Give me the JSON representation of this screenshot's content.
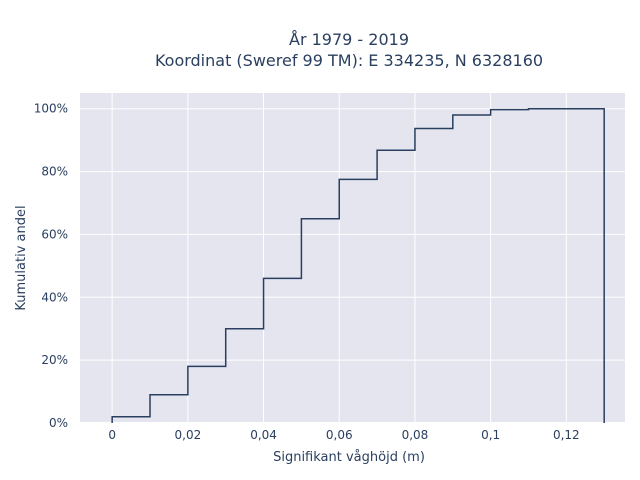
{
  "chart_data": {
    "type": "line",
    "line_shape": "step",
    "title_line1": "År 1979 - 2019",
    "title_line2": "Koordinat (Sweref 99 TM): E 334235, N 6328160",
    "xlabel": "Signifikant våghöjd (m)",
    "ylabel": "Kumulativ andel",
    "xlim": [
      -0.0085,
      0.1355
    ],
    "ylim": [
      0,
      1.05
    ],
    "x_ticks": [
      0,
      0.02,
      0.04,
      0.06,
      0.08,
      0.1,
      0.12
    ],
    "x_tick_labels": [
      "0",
      "0,02",
      "0,04",
      "0,06",
      "0,08",
      "0,1",
      "0,12"
    ],
    "y_ticks": [
      0,
      0.2,
      0.4,
      0.6,
      0.8,
      1.0
    ],
    "y_tick_labels": [
      "0%",
      "20%",
      "40%",
      "60%",
      "80%",
      "100%"
    ],
    "grid": true,
    "background": "#e5e5f0",
    "line_color": "#2a3f5f",
    "series": [
      {
        "x": [
          0,
          0.01,
          0.02,
          0.03,
          0.04,
          0.05,
          0.06,
          0.07,
          0.08,
          0.09,
          0.1,
          0.11,
          0.12,
          0.13
        ],
        "y": [
          0.02,
          0.09,
          0.18,
          0.3,
          0.46,
          0.65,
          0.775,
          0.868,
          0.937,
          0.98,
          0.997,
          1.0,
          1.0,
          1.0
        ],
        "drop_to_zero_at_end": true
      }
    ]
  }
}
